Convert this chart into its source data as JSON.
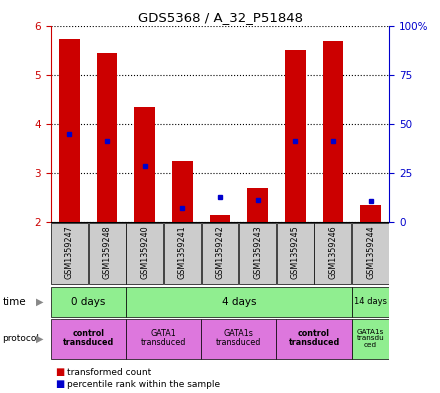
{
  "title": "GDS5368 / A_32_P51848",
  "samples": [
    "GSM1359247",
    "GSM1359248",
    "GSM1359240",
    "GSM1359241",
    "GSM1359242",
    "GSM1359243",
    "GSM1359245",
    "GSM1359246",
    "GSM1359244"
  ],
  "red_values": [
    5.72,
    5.45,
    4.35,
    3.25,
    2.15,
    2.7,
    5.5,
    5.68,
    2.35
  ],
  "blue_values": [
    3.8,
    3.65,
    3.15,
    2.28,
    2.5,
    2.45,
    3.65,
    3.65,
    2.43
  ],
  "ylim": [
    2.0,
    6.0
  ],
  "yticks_left": [
    2,
    3,
    4,
    5,
    6
  ],
  "yticks_right": [
    0,
    25,
    50,
    75,
    100
  ],
  "bar_color": "#cc0000",
  "dot_color": "#0000cc",
  "bar_bottom": 2.0,
  "background_color": "#ffffff",
  "left_axis_color": "#cc0000",
  "right_axis_color": "#0000cc",
  "bar_width": 0.55,
  "chart_facecolor": "#ffffff",
  "sample_box_color": "#cccccc",
  "time_color": "#90ee90",
  "protocol_color_pink": "#dd77dd",
  "protocol_color_green": "#90ee90",
  "time_groups": [
    {
      "label": "0 days",
      "start": 0,
      "end": 2
    },
    {
      "label": "4 days",
      "start": 2,
      "end": 8
    },
    {
      "label": "14 days",
      "start": 8,
      "end": 9
    }
  ],
  "protocol_groups": [
    {
      "label": "control\ntransduced",
      "start": 0,
      "end": 2,
      "pink": true,
      "bold": true
    },
    {
      "label": "GATA1\ntransduced",
      "start": 2,
      "end": 4,
      "pink": true,
      "bold": false
    },
    {
      "label": "GATA1s\ntransduced",
      "start": 4,
      "end": 6,
      "pink": true,
      "bold": false
    },
    {
      "label": "control\ntransduced",
      "start": 6,
      "end": 8,
      "pink": true,
      "bold": true
    },
    {
      "label": "GATA1s\ntransdu\nced",
      "start": 8,
      "end": 9,
      "pink": false,
      "bold": false
    }
  ]
}
